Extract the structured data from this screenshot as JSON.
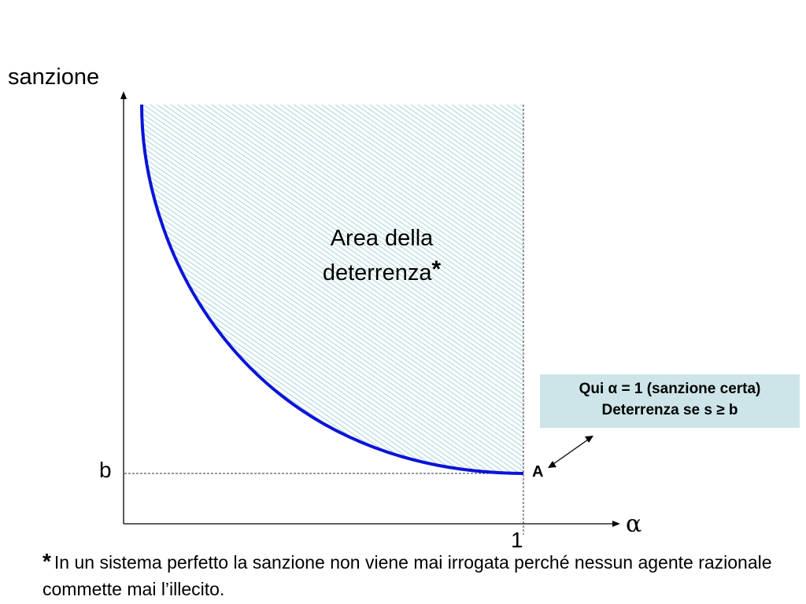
{
  "axes": {
    "y_label": "sanzione",
    "x_label": "α"
  },
  "ticks": {
    "y_b": "b",
    "x_1": "1"
  },
  "region": {
    "line1": "Area della",
    "line2": "deterrenza",
    "marker": "*"
  },
  "point": {
    "label": "A"
  },
  "callout": {
    "line1": "Qui α = 1 (sanzione certa)",
    "line2": "Deterrenza se s ≥ b"
  },
  "footnote": {
    "marker": "*",
    "text": "In un sistema perfetto la sanzione non viene mai irrogata perché nessun agente razionale commette mai l’illecito."
  },
  "colors": {
    "curve": "#0a14d8",
    "hatch": "#8ec9cc",
    "callout_bg": "#cde5e8"
  }
}
